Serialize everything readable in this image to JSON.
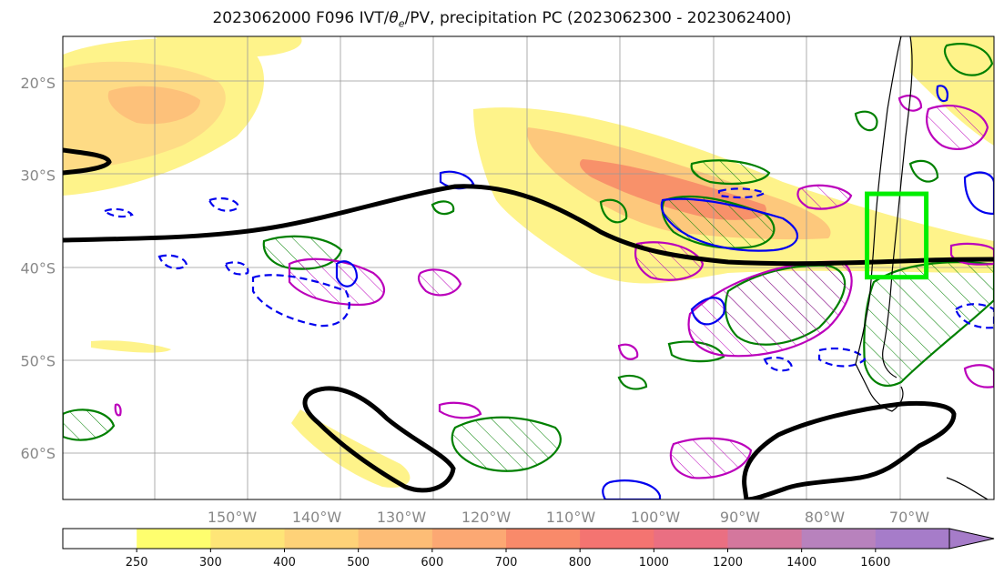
{
  "title": {
    "prefix": "2023062000 F096 IVT/",
    "theta": "θ",
    "theta_sub": "e",
    "suffix": "/PV, precipitation PC (2023062300 - 2023062400)"
  },
  "map": {
    "lon_range": [
      -170,
      -60
    ],
    "lat_range": [
      -65,
      -15
    ],
    "lat_labels": [
      {
        "lat": -20,
        "text": "20°S"
      },
      {
        "lat": -30,
        "text": "30°S"
      },
      {
        "lat": -40,
        "text": "40°S"
      },
      {
        "lat": -50,
        "text": "50°S"
      },
      {
        "lat": -60,
        "text": "60°S"
      }
    ],
    "lon_labels": [
      {
        "lon": -150,
        "text": "150°W"
      },
      {
        "lon": -140,
        "text": "140°W"
      },
      {
        "lon": -130,
        "text": "130°W"
      },
      {
        "lon": -120,
        "text": "120°W"
      },
      {
        "lon": -110,
        "text": "110°W"
      },
      {
        "lon": -100,
        "text": "100°W"
      },
      {
        "lon": -90,
        "text": "90°W"
      },
      {
        "lon": -80,
        "text": "80°W"
      },
      {
        "lon": -70,
        "text": "70°W"
      }
    ],
    "highlight_box": {
      "lon_min": -75,
      "lon_max": -68,
      "lat_min": -41,
      "lat_max": -32,
      "color": "#00ee00"
    },
    "colors": {
      "theta_e_contour": "#000000",
      "pv_positive": "#0000ee",
      "precip_pc": "#008000",
      "ivt_alt": "#bb00bb",
      "grid": "#999999"
    }
  },
  "colorbar": {
    "levels": [
      "250",
      "300",
      "400",
      "500",
      "600",
      "700",
      "800",
      "1000",
      "1200",
      "1400",
      "1600"
    ],
    "colors": [
      "#ffffff",
      "#fefe6e",
      "#fee577",
      "#fed278",
      "#fdbd76",
      "#fca873",
      "#f98a6a",
      "#f47471",
      "#ea6f82",
      "#d4779d",
      "#b882bd",
      "#a67cc9"
    ],
    "extend": "max"
  }
}
